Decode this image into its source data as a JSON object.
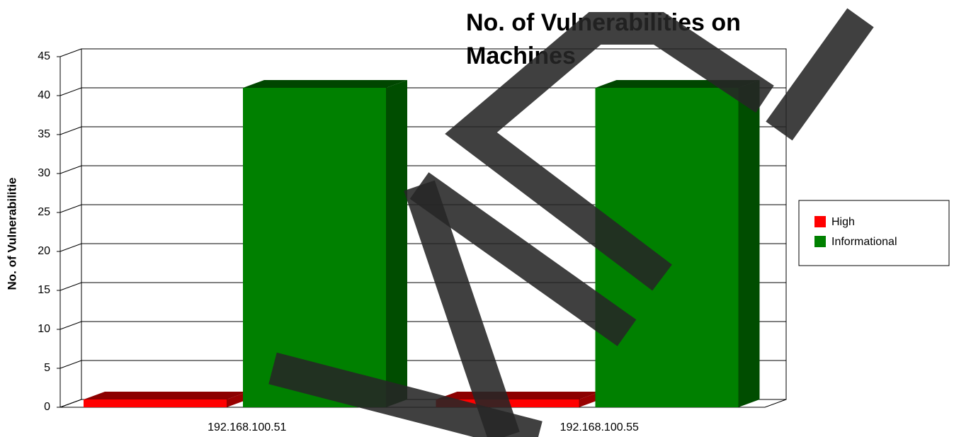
{
  "chart_data": {
    "type": "bar3d",
    "title": "No. of Vulnerabilities on Machines",
    "y_label": "No. of Vulnerabilitie",
    "categories": [
      "192.168.100.51",
      "192.168.100.55"
    ],
    "series": [
      {
        "name": "High",
        "color": "#ff0000",
        "values": [
          1,
          1
        ]
      },
      {
        "name": "Informational",
        "color": "#008000",
        "values": [
          41,
          41
        ]
      }
    ],
    "ylim": [
      0,
      45
    ],
    "yticks": [
      0,
      5,
      10,
      15,
      20,
      25,
      30,
      35,
      40,
      45
    ],
    "grid": true,
    "legend": "right"
  }
}
